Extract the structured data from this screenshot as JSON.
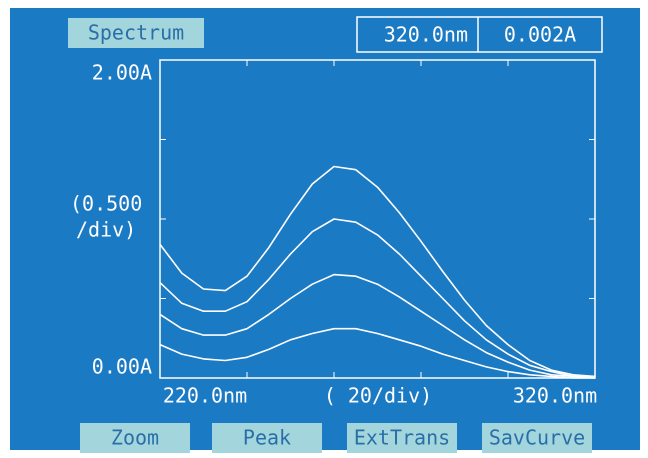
{
  "tab": "Spectrum",
  "readout": {
    "wavelength": "320.0nm",
    "absorbance": "0.002A"
  },
  "buttons": [
    "Zoom",
    "Peak",
    "ExtTrans",
    "SavCurve"
  ],
  "chart_data": {
    "type": "line",
    "y_label": [
      "(0.500",
      "/div)"
    ],
    "x_label": "( 20/div)",
    "x": [
      220,
      225,
      230,
      235,
      240,
      245,
      250,
      255,
      260,
      265,
      270,
      275,
      280,
      285,
      290,
      295,
      300,
      305,
      310,
      315,
      320
    ],
    "series": [
      {
        "color": "#ffffff",
        "values": [
          0.84,
          0.66,
          0.56,
          0.55,
          0.64,
          0.82,
          1.03,
          1.22,
          1.33,
          1.31,
          1.2,
          1.04,
          0.86,
          0.67,
          0.49,
          0.33,
          0.21,
          0.11,
          0.05,
          0.02,
          0.01
        ]
      },
      {
        "color": "#ffffff",
        "values": [
          0.6,
          0.47,
          0.42,
          0.42,
          0.48,
          0.62,
          0.78,
          0.92,
          1.0,
          0.98,
          0.9,
          0.78,
          0.64,
          0.5,
          0.36,
          0.24,
          0.15,
          0.08,
          0.04,
          0.01,
          0.01
        ]
      },
      {
        "color": "#ffffff",
        "values": [
          0.4,
          0.31,
          0.27,
          0.27,
          0.31,
          0.4,
          0.5,
          0.59,
          0.65,
          0.64,
          0.59,
          0.51,
          0.42,
          0.33,
          0.24,
          0.16,
          0.1,
          0.05,
          0.02,
          0.01,
          0
        ]
      },
      {
        "color": "#ffffff",
        "values": [
          0.21,
          0.15,
          0.12,
          0.11,
          0.13,
          0.18,
          0.24,
          0.28,
          0.31,
          0.31,
          0.28,
          0.24,
          0.2,
          0.15,
          0.11,
          0.07,
          0.04,
          0.02,
          0.01,
          0,
          0
        ]
      }
    ],
    "xlim": [
      220,
      320
    ],
    "xticks": [
      {
        "value": 220,
        "label": "220.0nm"
      },
      {
        "value": 240,
        "label": null
      },
      {
        "value": 260,
        "label": null
      },
      {
        "value": 280,
        "label": null
      },
      {
        "value": 300,
        "label": null
      },
      {
        "value": 320,
        "label": "320.0nm"
      }
    ],
    "ylim": [
      0,
      2
    ],
    "yticks": [
      {
        "value": 0,
        "label": "0.00A"
      },
      {
        "value": 0.5,
        "label": null
      },
      {
        "value": 1,
        "label": null
      },
      {
        "value": 1.5,
        "label": null
      },
      {
        "value": 2,
        "label": "2.00A"
      }
    ],
    "grid": false
  }
}
